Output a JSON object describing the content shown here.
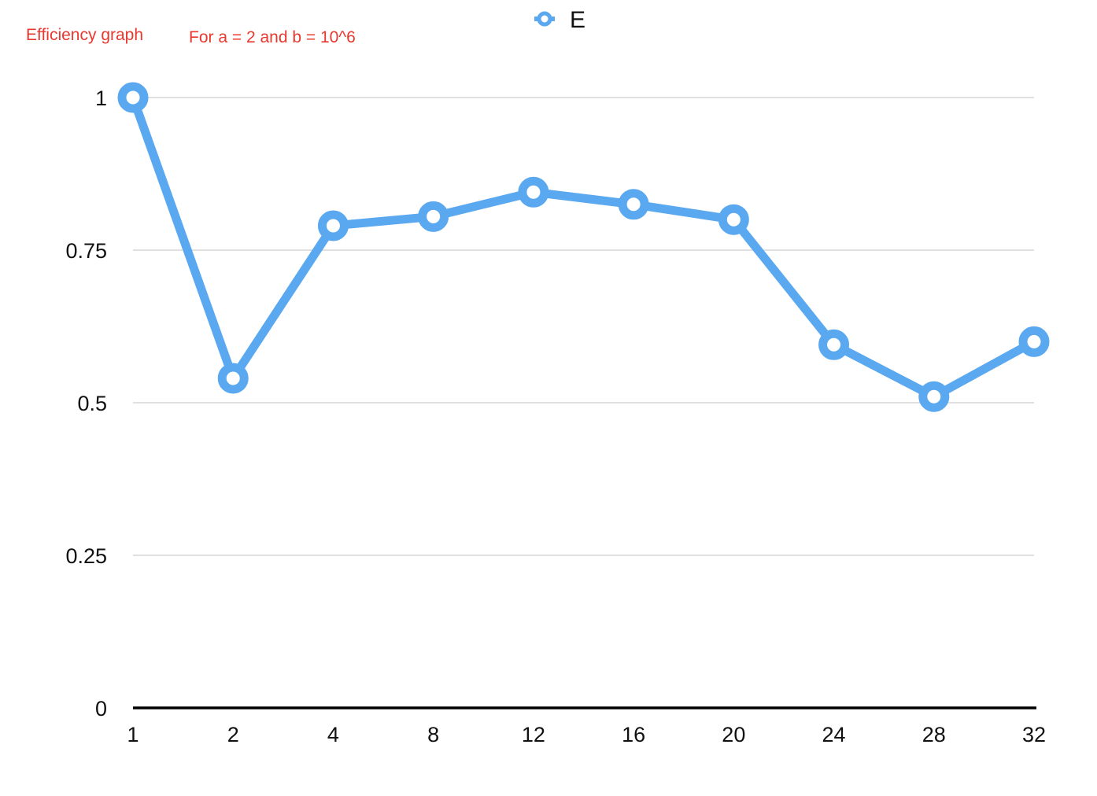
{
  "annotations": {
    "title_note": "Efficiency graph",
    "params_note": "For a = 2 and b = 10^6",
    "color": "#e8382f"
  },
  "chart_data": {
    "type": "line",
    "categories": [
      "1",
      "2",
      "4",
      "8",
      "12",
      "16",
      "20",
      "24",
      "28",
      "32"
    ],
    "series": [
      {
        "name": "E",
        "color": "#5aa8f0",
        "marker": "hollow-circle",
        "values": [
          1.0,
          0.54,
          0.79,
          0.805,
          0.845,
          0.825,
          0.8,
          0.595,
          0.51,
          0.6
        ]
      }
    ],
    "y_ticks": [
      "0",
      "0.25",
      "0.5",
      "0.75",
      "1"
    ],
    "y_tick_values": [
      0,
      0.25,
      0.5,
      0.75,
      1
    ],
    "ylim": [
      0,
      1
    ],
    "xlabel": "",
    "ylabel": "",
    "grid": true,
    "legend_position": "top-center"
  }
}
